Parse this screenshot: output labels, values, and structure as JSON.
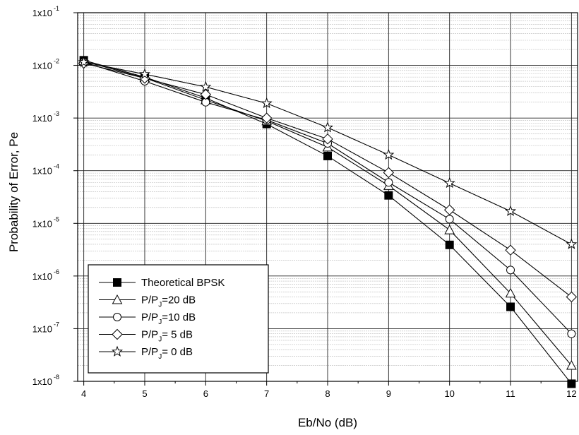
{
  "chart_data": {
    "type": "line",
    "title": "",
    "xlabel": "Eb/No (dB)",
    "ylabel": "Probability of Error, Pe",
    "xlim": [
      3.9,
      12.1
    ],
    "ylim": [
      1e-08,
      0.1
    ],
    "yscale": "log",
    "grid": true,
    "legend_position": "bottom-left",
    "x_ticks": [
      "4",
      "5",
      "6",
      "7",
      "8",
      "9",
      "10",
      "11",
      "12"
    ],
    "y_ticks": [
      {
        "base": "1x10",
        "exp": "-1",
        "value": 0.1
      },
      {
        "base": "1x10",
        "exp": "-2",
        "value": 0.01
      },
      {
        "base": "1x10",
        "exp": "-3",
        "value": 0.001
      },
      {
        "base": "1x10",
        "exp": "-4",
        "value": 0.0001
      },
      {
        "base": "1x10",
        "exp": "-5",
        "value": 1e-05
      },
      {
        "base": "1x10",
        "exp": "-6",
        "value": 1e-06
      },
      {
        "base": "1x10",
        "exp": "-7",
        "value": 1e-07
      },
      {
        "base": "1x10",
        "exp": "-8",
        "value": 1e-08
      }
    ],
    "x": [
      4,
      5,
      6,
      7,
      8,
      9,
      10,
      11,
      12
    ],
    "series": [
      {
        "name": "Theoretical BPSK",
        "label_main": "Theoretical BPSK",
        "label_sub": "",
        "label_rest": "",
        "marker": "square",
        "values": [
          0.0125,
          0.006,
          0.0024,
          0.00077,
          0.00019,
          3.4e-05,
          3.9e-06,
          2.6e-07,
          9e-09
        ]
      },
      {
        "name": "P/PJ=20 dB",
        "label_main": "P/P",
        "label_sub": "J",
        "label_rest": "=20 dB",
        "marker": "triangle",
        "values": [
          0.012,
          0.0058,
          0.0022,
          0.00088,
          0.00028,
          5.2e-05,
          7.5e-06,
          4.7e-07,
          2e-08
        ]
      },
      {
        "name": "P/PJ=10 dB",
        "label_main": "P/P",
        "label_sub": "J",
        "label_rest": "=10 dB",
        "marker": "circle",
        "values": [
          0.0115,
          0.005,
          0.002,
          0.00092,
          0.00033,
          6e-05,
          1.2e-05,
          1.3e-06,
          8e-08
        ]
      },
      {
        "name": "P/PJ= 5 dB",
        "label_main": "P/P",
        "label_sub": "J",
        "label_rest": "= 5 dB",
        "marker": "diamond",
        "values": [
          0.011,
          0.0057,
          0.0028,
          0.001,
          0.0004,
          9.2e-05,
          1.8e-05,
          3.1e-06,
          4e-07
        ]
      },
      {
        "name": "P/PJ= 0 dB",
        "label_main": "P/P",
        "label_sub": "J",
        "label_rest": "= 0 dB",
        "marker": "star",
        "values": [
          0.0115,
          0.0068,
          0.0039,
          0.0019,
          0.00066,
          0.0002,
          5.8e-05,
          1.7e-05,
          4e-06
        ]
      }
    ]
  }
}
